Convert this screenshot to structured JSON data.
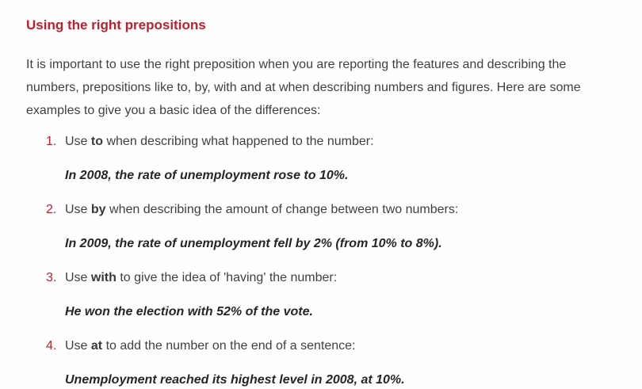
{
  "colors": {
    "accent_red": "#be1e2d",
    "body_text": "#3f3f3f",
    "example_text": "#262626",
    "background": "#fefefe"
  },
  "heading": "Using the right prepositions",
  "intro": "It is important to use the right preposition when you are reporting the features and describing the numbers, prepositions like to, by, with and at when describing numbers and figures. Here are some examples to give you a basic idea of the differences:",
  "list": [
    {
      "number": "1.",
      "pre": "Use ",
      "keyword": "to",
      "post": " when describing what happened to the number:",
      "example": "In 2008, the rate of unemployment rose to 10%."
    },
    {
      "number": "2.",
      "pre": "Use ",
      "keyword": "by",
      "post": " when describing the amount of change between two numbers:",
      "example": "In 2009, the rate of unemployment fell by 2% (from 10% to 8%)."
    },
    {
      "number": "3.",
      "pre": "Use ",
      "keyword": "with",
      "post": " to give the idea of 'having' the number:",
      "example": "He won the election with 52% of the vote."
    },
    {
      "number": "4.",
      "pre": "Use ",
      "keyword": "at",
      "post": " to add the number on the end of a sentence:",
      "example": "Unemployment reached its highest level in 2008, at 10%."
    }
  ]
}
